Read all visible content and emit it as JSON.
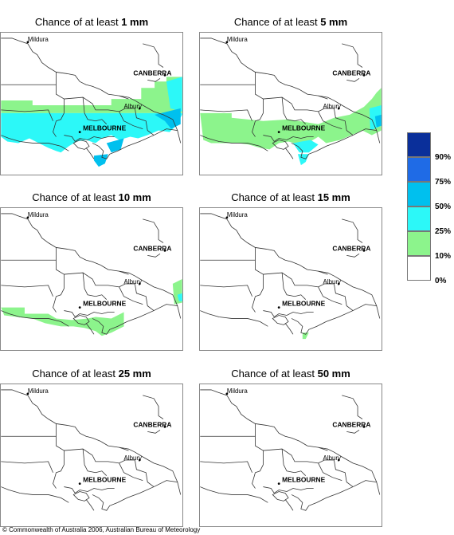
{
  "panels": [
    {
      "prefix": "Chance of at least ",
      "amount": "1 mm"
    },
    {
      "prefix": "Chance of at least ",
      "amount": "5 mm"
    },
    {
      "prefix": "Chance of at least ",
      "amount": "10 mm"
    },
    {
      "prefix": "Chance of at least ",
      "amount": "15 mm"
    },
    {
      "prefix": "Chance of at least ",
      "amount": "25 mm"
    },
    {
      "prefix": "Chance of at least ",
      "amount": "50 mm"
    }
  ],
  "map_labels": {
    "mildura": "Mildura",
    "canberra": "CANBERRA",
    "albury": "Albury",
    "melbourne": "MELBOURNE"
  },
  "legend": {
    "labels": [
      "90%",
      "75%",
      "50%",
      "25%",
      "10%",
      "0%"
    ],
    "colors": [
      "#0a2f9a",
      "#1f6be6",
      "#00c0ee",
      "#2cf8f8",
      "#8cf48c",
      "#ffffff"
    ]
  },
  "copyright": "© Commonwealth of Australia 2006, Australian Bureau of Meteorology"
}
